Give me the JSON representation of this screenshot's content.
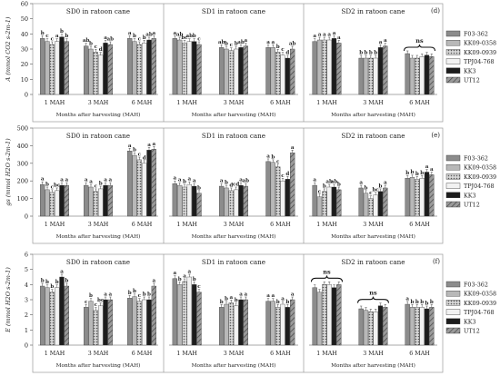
{
  "chart_data": [
    {
      "type": "bar",
      "row_label": "(d)",
      "ylabel": "A (mmol CO2 s-2m-1)",
      "ylim": [
        0,
        60
      ],
      "yticks": [
        0,
        10,
        20,
        30,
        40,
        50,
        60
      ],
      "xlabel": "Months after harvesting (MAH)",
      "categories": [
        "1 MAH",
        "3 MAH",
        "6 MAH"
      ],
      "series_names": [
        "F03-362",
        "KK09-0358",
        "KK09-0939",
        "TPJ04-768",
        "KK3",
        "UT12"
      ],
      "panels": [
        {
          "title": "SD0 in ratoon cane",
          "values": [
            [
              37,
              35,
              33,
              35,
              38,
              35
            ],
            [
              32,
              30,
              28,
              26,
              34,
              33
            ],
            [
              37,
              35,
              33,
              34,
              36,
              37
            ]
          ],
          "letters": [
            [
              "b",
              "c",
              "c",
              "a",
              "b",
              "b"
            ],
            [
              "ab",
              "b",
              "c",
              "d",
              "a",
              "ab"
            ],
            [
              "a",
              "b",
              "c",
              "b",
              "ab",
              "a"
            ]
          ]
        },
        {
          "title": "SD1 in ratoon cane",
          "values": [
            [
              37,
              36,
              34,
              35,
              35,
              33
            ],
            [
              31,
              30,
              29,
              30,
              31,
              32
            ],
            [
              31,
              31,
              28,
              26,
              24,
              30
            ]
          ],
          "letters": [
            [
              "a",
              "ab",
              "bc",
              "ab",
              "b",
              "c"
            ],
            [
              "ab",
              "b",
              "c",
              "b",
              "ab",
              "a"
            ],
            [
              "a",
              "a",
              "b",
              "c",
              "d",
              "ab"
            ]
          ]
        },
        {
          "title": "SD2 in ratoon cane",
          "values": [
            [
              35,
              36,
              36,
              36,
              37,
              34
            ],
            [
              24,
              24,
              24,
              24,
              31,
              32
            ],
            [
              27,
              24,
              24,
              25,
              26,
              25
            ]
          ],
          "letters": [
            [
              "a",
              "a",
              "a",
              "a",
              "a",
              "a"
            ],
            [
              "b",
              "b",
              "b",
              "b",
              "a",
              "a"
            ],
            [
              "",
              "",
              "",
              "",
              "",
              ""
            ]
          ],
          "ns": [
            2
          ]
        }
      ]
    },
    {
      "type": "bar",
      "row_label": "(e)",
      "ylabel": "gs (mmol H2O s-2m-1)",
      "ylim": [
        0,
        500
      ],
      "yticks": [
        0,
        100,
        200,
        300,
        400,
        500
      ],
      "xlabel": "Months after harvesting (MAH)",
      "categories": [
        "1 MAH",
        "3 MAH",
        "6 MAH"
      ],
      "series_names": [
        "F03-362",
        "KK09-0358",
        "KK09-0939",
        "TPJ04-768",
        "KK3",
        "UT12"
      ],
      "panels": [
        {
          "title": "SD0 in ratoon cane",
          "values": [
            [
              180,
              150,
              135,
              145,
              175,
              175
            ],
            [
              175,
              165,
              140,
              155,
              175,
              175
            ],
            [
              370,
              345,
              320,
              300,
              375,
              380
            ]
          ],
          "letters": [
            [
              "a",
              "b",
              "c",
              "bc",
              "a",
              "a"
            ],
            [
              "a",
              "a",
              "c",
              "b",
              "a",
              "a"
            ],
            [
              "a",
              "b",
              "c",
              "d",
              "a",
              "a"
            ]
          ]
        },
        {
          "title": "SD1 in ratoon cane",
          "values": [
            [
              185,
              175,
              165,
              180,
              170,
              130
            ],
            [
              170,
              160,
              145,
              150,
              175,
              170
            ],
            [
              310,
              305,
              280,
              200,
              210,
              360
            ]
          ],
          "letters": [
            [
              "a",
              "a",
              "b",
              "a",
              "a",
              "b"
            ],
            [
              "a",
              "b",
              "d",
              "cd",
              "a",
              "ab"
            ],
            [
              "a",
              "b",
              "c",
              "c",
              "d",
              "a"
            ]
          ]
        },
        {
          "title": "SD2 in ratoon cane",
          "values": [
            [
              175,
              110,
              140,
              165,
              165,
              150
            ],
            [
              160,
              130,
              100,
              120,
              140,
              160
            ],
            [
              215,
              220,
              210,
              215,
              250,
              235
            ]
          ],
          "letters": [
            [
              "a",
              "c",
              "b",
              "ab",
              "ab",
              "b"
            ],
            [
              "a",
              "b",
              "c",
              "bc",
              "b",
              "a"
            ],
            [
              "b",
              "b",
              "b",
              "b",
              "a",
              "a"
            ]
          ]
        }
      ]
    },
    {
      "type": "bar",
      "row_label": "(f)",
      "ylabel": "E (mmol H2O s-2m-1)",
      "ylim": [
        0,
        6
      ],
      "yticks": [
        0,
        1,
        2,
        3,
        4,
        5,
        6
      ],
      "xlabel": "Months after harvesting (MAH)",
      "categories": [
        "1 MAH",
        "3 MAH",
        "6 MAH"
      ],
      "series_names": [
        "F03-362",
        "KK09-0358",
        "KK09-0939",
        "TPJ04-768",
        "KK3",
        "UT12"
      ],
      "panels": [
        {
          "title": "SD0 in ratoon cane",
          "values": [
            [
              3.9,
              3.8,
              3.5,
              3.8,
              4.5,
              3.9
            ],
            [
              2.5,
              2.9,
              2.3,
              2.6,
              3.0,
              3.0
            ],
            [
              3.1,
              3.2,
              2.9,
              3.0,
              3.0,
              3.9
            ]
          ],
          "letters": [
            [
              "b",
              "b",
              "b",
              "b",
              "a",
              "b"
            ],
            [
              "c",
              "b",
              "c",
              "bc",
              "a",
              "a"
            ],
            [
              "b",
              "b",
              "c",
              "b",
              "b",
              "a"
            ]
          ]
        },
        {
          "title": "SD1 in ratoon cane",
          "values": [
            [
              4.4,
              4.0,
              4.2,
              4.5,
              4.0,
              3.5
            ],
            [
              2.5,
              2.7,
              2.8,
              2.6,
              3.0,
              3.0
            ],
            [
              2.9,
              2.9,
              2.5,
              2.7,
              2.5,
              3.0
            ]
          ],
          "letters": [
            [
              "a",
              "b",
              "a",
              "a",
              "b",
              "c"
            ],
            [
              "b",
              "b",
              "a",
              "b",
              "a",
              "a"
            ],
            [
              "a",
              "a",
              "b",
              "a",
              "b",
              "a"
            ]
          ]
        },
        {
          "title": "SD2 in ratoon cane",
          "values": [
            [
              3.8,
              3.5,
              4.0,
              4.0,
              3.8,
              4.0
            ],
            [
              2.4,
              2.3,
              2.2,
              2.2,
              2.6,
              2.5
            ],
            [
              2.7,
              2.5,
              2.5,
              2.5,
              2.4,
              2.5
            ]
          ],
          "letters": [
            [
              "",
              "",
              "",
              "",
              "",
              ""
            ],
            [
              "",
              "",
              "",
              "",
              "",
              ""
            ],
            [
              "a",
              "b",
              "b",
              "b",
              "b",
              "b"
            ]
          ],
          "ns": [
            0,
            1
          ]
        }
      ]
    }
  ],
  "colors": {
    "series": [
      "#8c8c8c",
      "#b8b8b8",
      "#7a7a7a",
      "#f2f2f2",
      "#1c1c1c",
      "#9a9a9a"
    ],
    "axis": "#555555",
    "frame": "#9a9a9a"
  }
}
